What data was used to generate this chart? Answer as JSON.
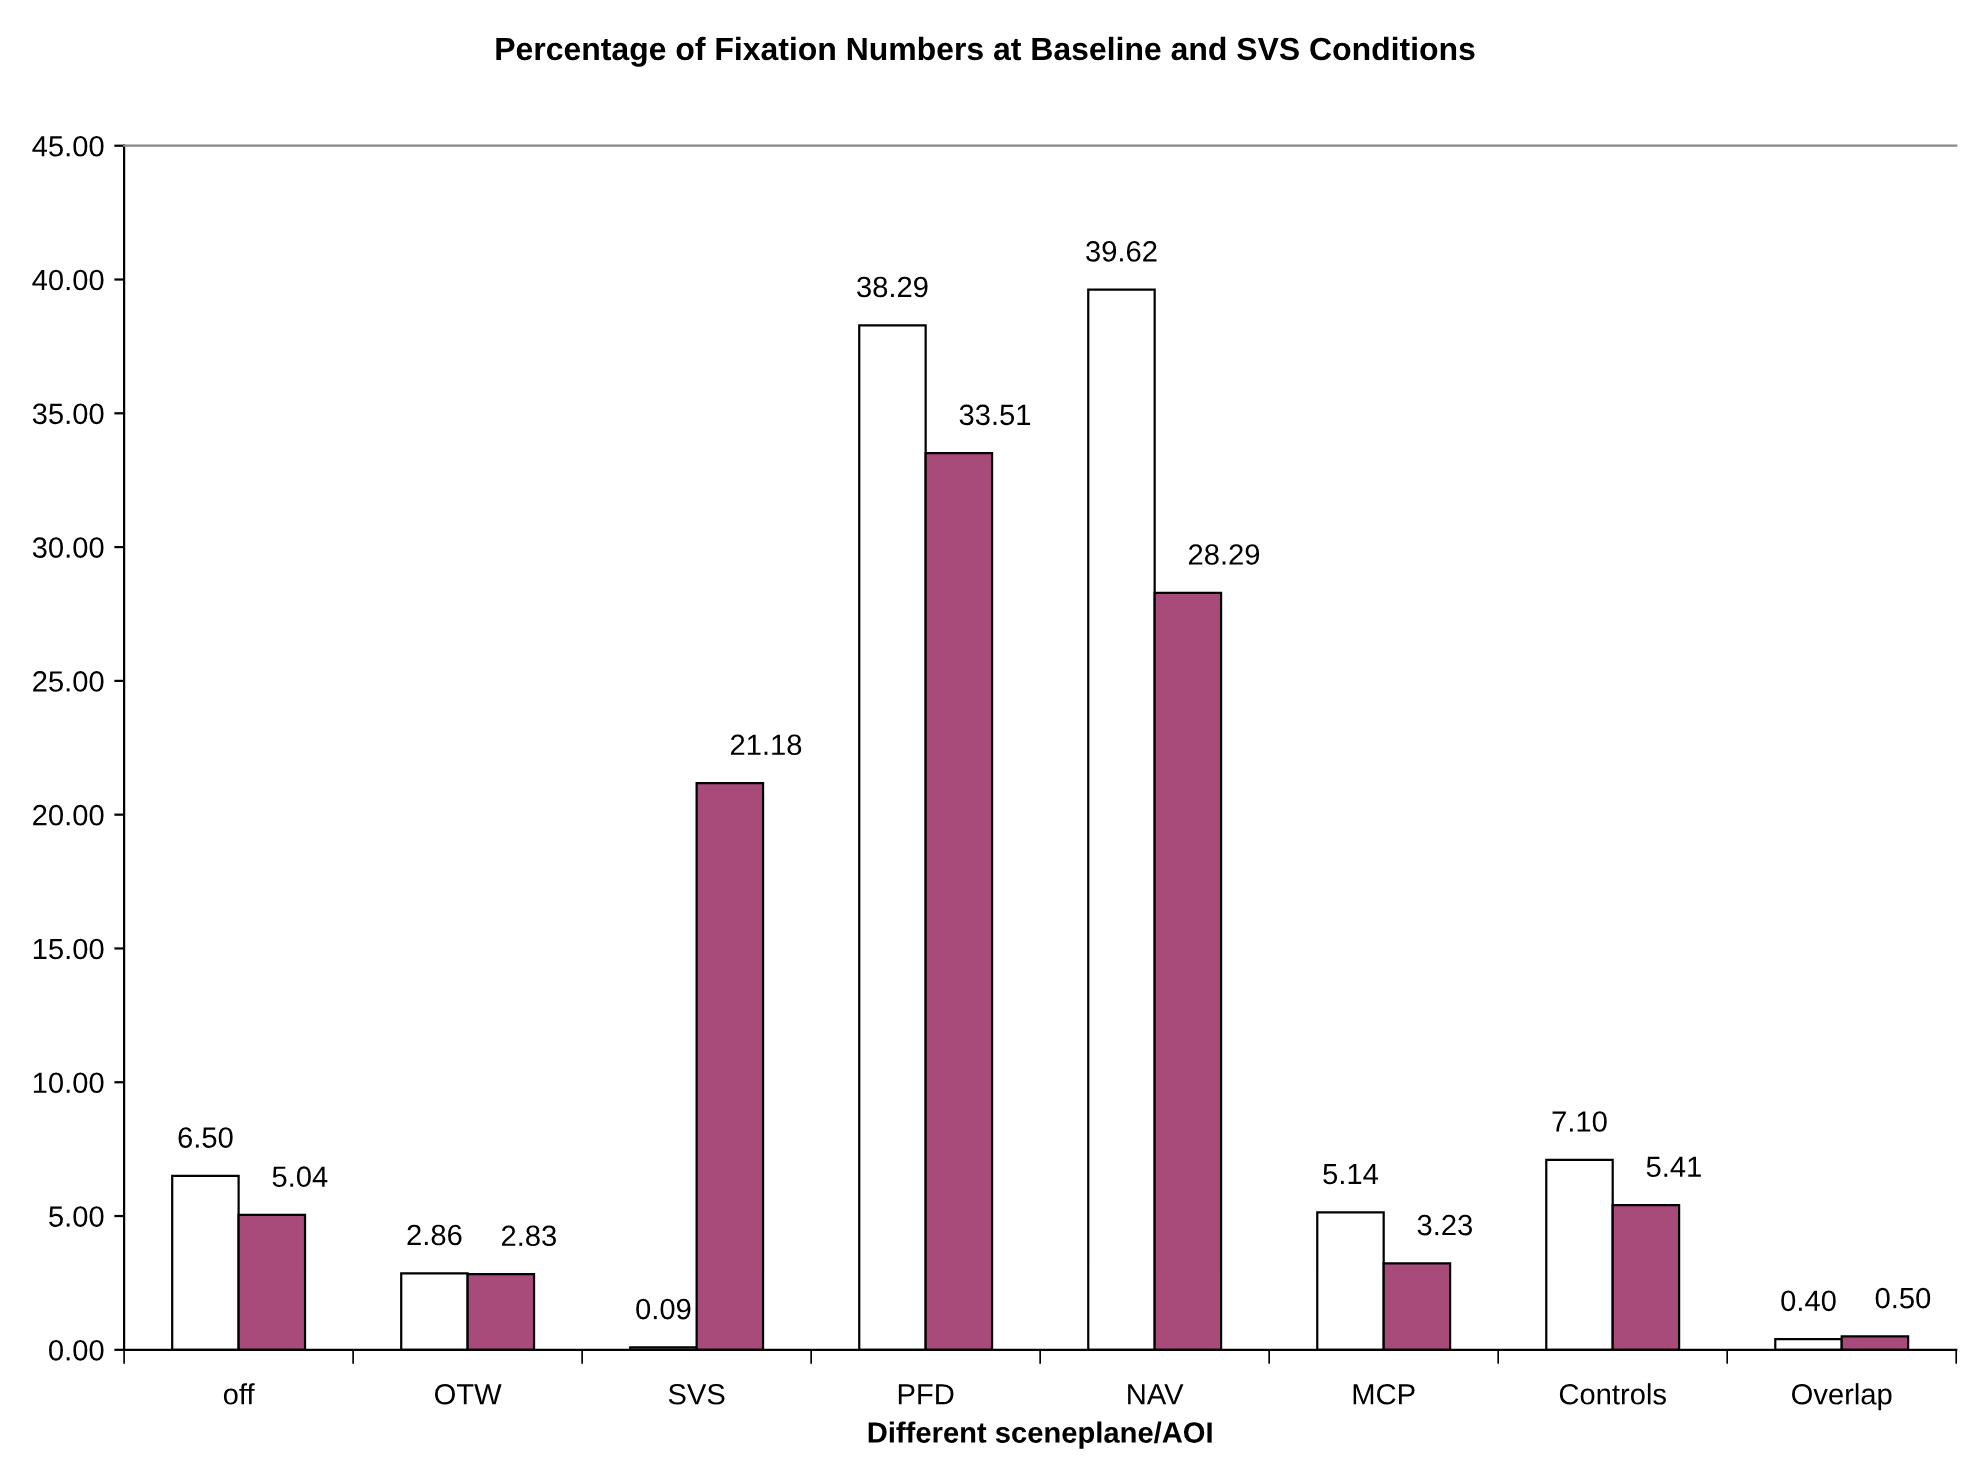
{
  "chart_data": {
    "type": "bar",
    "title": "Percentage of Fixation Numbers at Baseline and SVS Conditions",
    "xlabel": "Different sceneplane/AOI",
    "categories": [
      "off",
      "OTW",
      "SVS",
      "PFD",
      "NAV",
      "MCP",
      "Controls",
      "Overlap"
    ],
    "series": [
      {
        "color": "#ffffff",
        "values": [
          6.5,
          2.86,
          0.09,
          38.29,
          39.62,
          5.14,
          7.1,
          0.4
        ],
        "value_labels": [
          "6.50",
          "2.86",
          "0.09",
          "38.29",
          "39.62",
          "5.14",
          "7.10",
          "0.40"
        ]
      },
      {
        "color": "#a84a7a",
        "values": [
          5.04,
          2.83,
          21.18,
          33.51,
          28.29,
          3.23,
          5.41,
          0.5
        ],
        "value_labels": [
          "5.04",
          "2.83",
          "21.18",
          "33.51",
          "28.29",
          "3.23",
          "5.41",
          "0.50"
        ]
      }
    ],
    "ylim": [
      0,
      45
    ],
    "yticks": [
      {
        "value": 0,
        "label": "0.00"
      },
      {
        "value": 5,
        "label": "5.00"
      },
      {
        "value": 10,
        "label": "10.00"
      },
      {
        "value": 15,
        "label": "15.00"
      },
      {
        "value": 20,
        "label": "20.00"
      },
      {
        "value": 25,
        "label": "25.00"
      },
      {
        "value": 30,
        "label": "30.00"
      },
      {
        "value": 35,
        "label": "35.00"
      },
      {
        "value": 40,
        "label": "40.00"
      },
      {
        "value": 45,
        "label": "45.00"
      }
    ],
    "grid": false
  }
}
